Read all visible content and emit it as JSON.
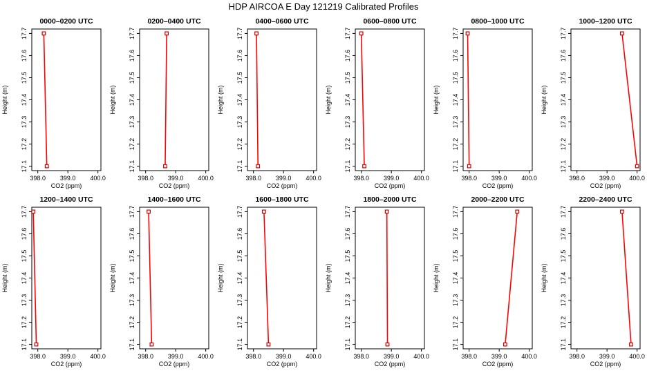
{
  "title": "HDP AIRCOA E  Day 121219  Calibrated Profiles",
  "colors": {
    "line": "#ff0000",
    "marker": "#cc0000",
    "frame": "#000000"
  },
  "chart_data": {
    "type": "line",
    "xlabel": "CO2 (ppm)",
    "ylabel": "Height (m)",
    "xlim": [
      397.8,
      400.1
    ],
    "ylim": [
      17.08,
      17.72
    ],
    "xticks": [
      398.0,
      399.0,
      400.0
    ],
    "xtick_labels": [
      "398.0",
      "399.0",
      "400.0"
    ],
    "yticks": [
      17.1,
      17.2,
      17.3,
      17.4,
      17.5,
      17.6,
      17.7
    ],
    "ytick_labels": [
      "17.1",
      "17.2",
      "17.3",
      "17.4",
      "17.5",
      "17.6",
      "17.7"
    ],
    "panels": [
      {
        "title": "0000–0200 UTC",
        "x": [
          398.2,
          398.3
        ],
        "y": [
          17.7,
          17.1
        ]
      },
      {
        "title": "0200–0400 UTC",
        "x": [
          398.7,
          398.65
        ],
        "y": [
          17.7,
          17.1
        ]
      },
      {
        "title": "0400–0600 UTC",
        "x": [
          398.1,
          398.15
        ],
        "y": [
          17.7,
          17.1
        ]
      },
      {
        "title": "0600–0800 UTC",
        "x": [
          398.0,
          398.1
        ],
        "y": [
          17.7,
          17.1
        ]
      },
      {
        "title": "0800–1000 UTC",
        "x": [
          397.95,
          398.0
        ],
        "y": [
          17.7,
          17.1
        ]
      },
      {
        "title": "1000–1200 UTC",
        "x": [
          399.5,
          400.0
        ],
        "y": [
          17.7,
          17.1
        ]
      },
      {
        "title": "1200–1400 UTC",
        "x": [
          397.85,
          397.95
        ],
        "y": [
          17.7,
          17.1
        ]
      },
      {
        "title": "1400–1600 UTC",
        "x": [
          398.1,
          398.2
        ],
        "y": [
          17.7,
          17.1
        ]
      },
      {
        "title": "1600–1800 UTC",
        "x": [
          398.35,
          398.5
        ],
        "y": [
          17.7,
          17.1
        ]
      },
      {
        "title": "1800–2000 UTC",
        "x": [
          398.85,
          398.87
        ],
        "y": [
          17.7,
          17.1
        ]
      },
      {
        "title": "2000–2200 UTC",
        "x": [
          399.6,
          399.2
        ],
        "y": [
          17.7,
          17.1
        ]
      },
      {
        "title": "2200–2400 UTC",
        "x": [
          399.5,
          399.8
        ],
        "y": [
          17.7,
          17.1
        ]
      }
    ]
  }
}
